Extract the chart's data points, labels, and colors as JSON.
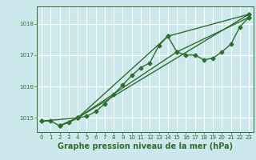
{
  "background_color": "#cde8ec",
  "grid_color": "#b0d8de",
  "line_color": "#2d6e2d",
  "title": "Graphe pression niveau de la mer (hPa)",
  "xlim": [
    -0.5,
    23.5
  ],
  "ylim": [
    1014.55,
    1018.55
  ],
  "yticks": [
    1015,
    1016,
    1017,
    1018
  ],
  "xticks": [
    0,
    1,
    2,
    3,
    4,
    5,
    6,
    7,
    8,
    9,
    10,
    11,
    12,
    13,
    14,
    15,
    16,
    17,
    18,
    19,
    20,
    21,
    22,
    23
  ],
  "series1_x": [
    0,
    1,
    2,
    3,
    4,
    5,
    6,
    7,
    8,
    9,
    10,
    11,
    12,
    13,
    14,
    15,
    16,
    17,
    18,
    19,
    20,
    21,
    22,
    23
  ],
  "series1_y": [
    1014.9,
    1014.9,
    1014.75,
    1014.85,
    1015.0,
    1015.05,
    1015.2,
    1015.45,
    1015.75,
    1016.05,
    1016.35,
    1016.6,
    1016.75,
    1017.3,
    1017.6,
    1017.1,
    1017.0,
    1017.0,
    1016.85,
    1016.9,
    1017.1,
    1017.35,
    1017.9,
    1018.2
  ],
  "series2_x": [
    0,
    4,
    23
  ],
  "series2_y": [
    1014.9,
    1015.0,
    1018.3
  ],
  "series3_x": [
    2,
    4,
    14,
    23
  ],
  "series3_y": [
    1014.75,
    1015.0,
    1017.6,
    1018.3
  ],
  "series4_x": [
    2,
    4,
    15,
    23
  ],
  "series4_y": [
    1014.75,
    1015.0,
    1017.1,
    1018.2
  ],
  "marker": "D",
  "markersize": 2.5,
  "linewidth": 1.0,
  "title_fontsize": 7,
  "tick_fontsize": 5
}
